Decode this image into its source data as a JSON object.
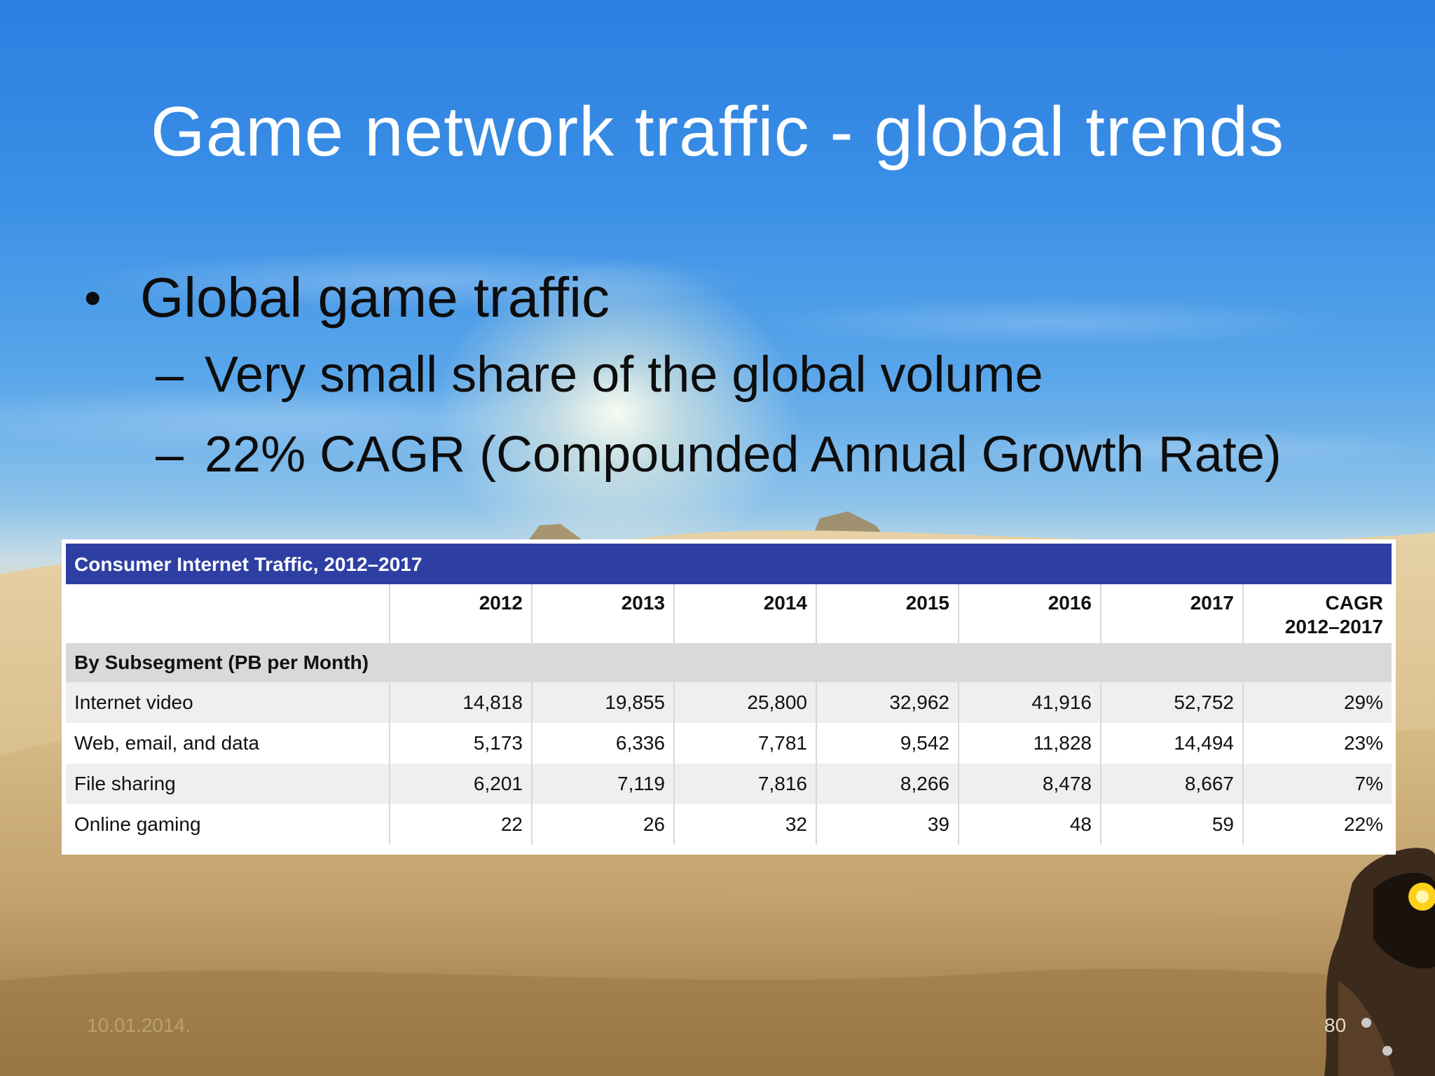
{
  "slide": {
    "title": "Game network traffic - global trends",
    "bullets": [
      {
        "level": 1,
        "marker": "•",
        "text": "Global game traffic"
      },
      {
        "level": 2,
        "marker": "–",
        "text": "Very small share of the global volume"
      },
      {
        "level": 2,
        "marker": "–",
        "text": "22% CAGR (Compounded Annual Growth Rate)"
      }
    ],
    "footer": {
      "date": "10.01.2014.",
      "page": "80"
    }
  },
  "table": {
    "title": "Consumer Internet Traffic, 2012–2017",
    "headers": [
      "",
      "2012",
      "2013",
      "2014",
      "2015",
      "2016",
      "2017",
      "CAGR 2012–2017"
    ],
    "cagr_header_line1": "CAGR",
    "cagr_header_line2": "2012–2017",
    "section_label": "By Subsegment (PB per Month)",
    "rows": [
      {
        "label": "Internet video",
        "values": [
          "14,818",
          "19,855",
          "25,800",
          "32,962",
          "41,916",
          "52,752",
          "29%"
        ]
      },
      {
        "label": "Web, email, and data",
        "values": [
          "5,173",
          "6,336",
          "7,781",
          "9,542",
          "11,828",
          "14,494",
          "23%"
        ]
      },
      {
        "label": "File sharing",
        "values": [
          "6,201",
          "7,119",
          "7,816",
          "8,266",
          "8,478",
          "8,667",
          "7%"
        ]
      },
      {
        "label": "Online gaming",
        "values": [
          "22",
          "26",
          "32",
          "39",
          "48",
          "59",
          "22%"
        ]
      }
    ]
  },
  "colors": {
    "table_title_bg": "#2e3fa3",
    "section_bg": "#d9d9d9",
    "title_text": "#ffffff",
    "bullet_text": "#0d0d0d"
  }
}
